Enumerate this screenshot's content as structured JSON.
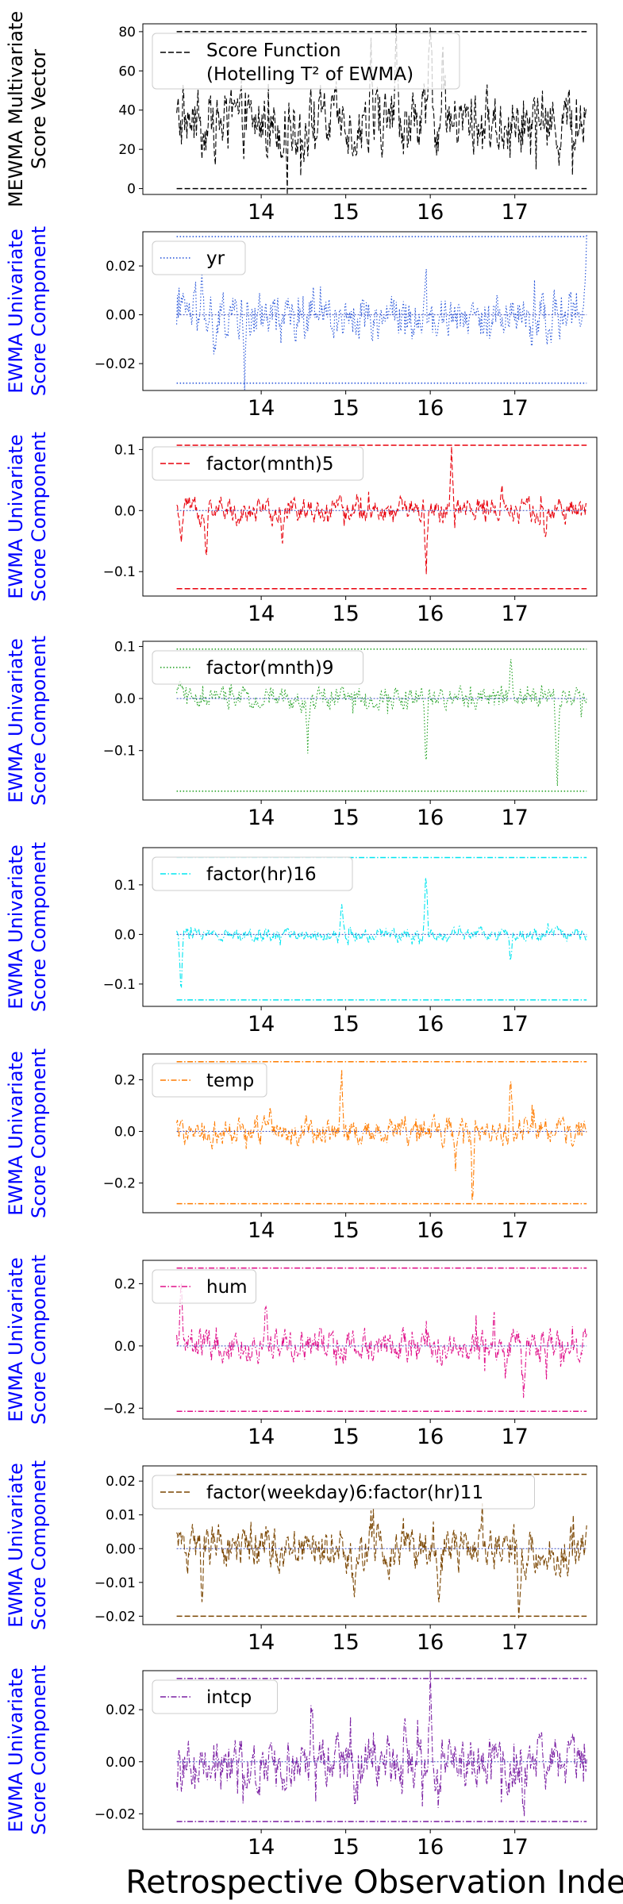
{
  "figure": {
    "xlabel": "Retrospective Observation Index",
    "xticks": [
      "14",
      "15",
      "16",
      "17"
    ],
    "sign_minus": "−"
  },
  "chart_data": [
    {
      "type": "line",
      "ylabel_lines": [
        "MEWMA Multivariate",
        "Score Vector"
      ],
      "ylabel_color": "#000000",
      "legend_lines": [
        "Score Function",
        "(Hotelling T² of EWMA)"
      ],
      "legend_position": "upper-left",
      "color": "#000000",
      "line_style": "dashed",
      "ylim": [
        -3,
        84
      ],
      "yticks": [
        0,
        20,
        40,
        60,
        80
      ],
      "center": null,
      "limits": {
        "upper": 80,
        "lower": 0
      },
      "series": {
        "base": 33,
        "amp": 13,
        "spikes": [
          [
            16.0,
            80
          ],
          [
            15.3,
            74
          ],
          [
            16.15,
            70
          ],
          [
            15.6,
            68
          ]
        ]
      }
    },
    {
      "type": "line",
      "ylabel_lines": [
        "EWMA Univariate",
        "Score Component"
      ],
      "ylabel_color": "#0000ff",
      "legend_lines": [
        "yr"
      ],
      "legend_position": "upper-left",
      "color": "#1f4fd8",
      "line_style": "dotted",
      "ylim": [
        -0.031,
        0.034
      ],
      "yticks": [
        -0.02,
        0.0,
        0.02
      ],
      "center": 0.0,
      "limits": {
        "upper": 0.032,
        "lower": -0.028
      },
      "series": {
        "base": 0.0,
        "amp": 0.007,
        "spikes": [
          [
            13.3,
            0.018
          ],
          [
            13.45,
            -0.02
          ],
          [
            13.8,
            -0.027
          ],
          [
            15.95,
            0.025
          ],
          [
            17.2,
            -0.018
          ],
          [
            17.85,
            0.032
          ]
        ]
      }
    },
    {
      "type": "line",
      "ylabel_lines": [
        "EWMA Univariate",
        "Score Component"
      ],
      "ylabel_color": "#0000ff",
      "legend_lines": [
        "factor(mnth)5"
      ],
      "legend_position": "upper-left",
      "color": "#e8000b",
      "line_style": "dashed",
      "ylim": [
        -0.14,
        0.12
      ],
      "yticks": [
        -0.1,
        0.0,
        0.1
      ],
      "center": 0.0,
      "limits": {
        "upper": 0.107,
        "lower": -0.128
      },
      "series": {
        "base": 0.0,
        "amp": 0.016,
        "spikes": [
          [
            13.35,
            -0.08
          ],
          [
            13.05,
            -0.07
          ],
          [
            14.25,
            -0.07
          ],
          [
            15.95,
            -0.12
          ],
          [
            16.25,
            0.11
          ],
          [
            17.35,
            -0.05
          ],
          [
            16.85,
            0.06
          ]
        ]
      }
    },
    {
      "type": "line",
      "ylabel_lines": [
        "EWMA Univariate",
        "Score Component"
      ],
      "ylabel_color": "#0000ff",
      "legend_lines": [
        "factor(mnth)9"
      ],
      "legend_position": "upper-left",
      "color": "#1a9e1a",
      "line_style": "dotted",
      "ylim": [
        -0.195,
        0.11
      ],
      "yticks": [
        -0.1,
        0.0,
        0.1
      ],
      "center": 0.0,
      "limits": {
        "upper": 0.095,
        "lower": -0.178
      },
      "series": {
        "base": 0.0,
        "amp": 0.016,
        "spikes": [
          [
            13.05,
            0.09
          ],
          [
            13.05,
            -0.05
          ],
          [
            14.55,
            -0.11
          ],
          [
            15.95,
            -0.13
          ],
          [
            17.5,
            -0.175
          ],
          [
            16.95,
            0.09
          ]
        ]
      }
    },
    {
      "type": "line",
      "ylabel_lines": [
        "EWMA Univariate",
        "Score Component"
      ],
      "ylabel_color": "#0000ff",
      "legend_lines": [
        "factor(hr)16"
      ],
      "legend_position": "upper-left",
      "color": "#00e5f0",
      "line_style": "dashdot",
      "ylim": [
        -0.145,
        0.175
      ],
      "yticks": [
        -0.1,
        0.0,
        0.1
      ],
      "center": 0.0,
      "limits": {
        "upper": 0.155,
        "lower": -0.132
      },
      "series": {
        "base": 0.0,
        "amp": 0.01,
        "spikes": [
          [
            13.05,
            -0.13
          ],
          [
            15.95,
            0.16
          ],
          [
            14.95,
            0.06
          ],
          [
            16.95,
            -0.07
          ]
        ]
      }
    },
    {
      "type": "line",
      "ylabel_lines": [
        "EWMA Univariate",
        "Score Component"
      ],
      "ylabel_color": "#0000ff",
      "legend_lines": [
        "temp"
      ],
      "legend_position": "upper-left",
      "color": "#ff7c00",
      "line_style": "dashdot",
      "ylim": [
        -0.315,
        0.3
      ],
      "yticks": [
        -0.2,
        0.0,
        0.2
      ],
      "center": 0.0,
      "limits": {
        "upper": 0.27,
        "lower": -0.28
      },
      "series": {
        "base": 0.0,
        "amp": 0.04,
        "spikes": [
          [
            14.95,
            0.26
          ],
          [
            16.5,
            -0.28
          ],
          [
            16.95,
            0.2
          ],
          [
            14.1,
            0.12
          ],
          [
            16.3,
            -0.2
          ]
        ]
      }
    },
    {
      "type": "line",
      "ylabel_lines": [
        "EWMA Univariate",
        "Score Component"
      ],
      "ylabel_color": "#0000ff",
      "legend_lines": [
        "hum"
      ],
      "legend_position": "upper-left",
      "color": "#e0118a",
      "line_style": "dashdot",
      "ylim": [
        -0.235,
        0.275
      ],
      "yticks": [
        -0.2,
        0.0,
        0.2
      ],
      "center": 0.0,
      "limits": {
        "upper": 0.25,
        "lower": -0.21
      },
      "series": {
        "base": 0.0,
        "amp": 0.04,
        "spikes": [
          [
            15.95,
            0.23
          ],
          [
            15.95,
            -0.17
          ],
          [
            14.05,
            0.12
          ],
          [
            17.1,
            -0.15
          ],
          [
            13.05,
            0.2
          ]
        ]
      }
    },
    {
      "type": "line",
      "ylabel_lines": [
        "EWMA Univariate",
        "Score Component"
      ],
      "ylabel_color": "#0000ff",
      "legend_lines": [
        "factor(weekday)6:factor(hr)11"
      ],
      "legend_position": "upper-left",
      "color": "#7a4500",
      "line_style": "dashed",
      "ylim": [
        -0.0225,
        0.0245
      ],
      "yticks": [
        -0.02,
        -0.01,
        0.0,
        0.01,
        0.02
      ],
      "center": 0.0,
      "limits": {
        "upper": 0.022,
        "lower": -0.02
      },
      "series": {
        "base": 0.0,
        "amp": 0.005,
        "spikes": [
          [
            13.3,
            -0.02
          ],
          [
            15.1,
            -0.018
          ],
          [
            16.1,
            -0.016
          ],
          [
            17.05,
            -0.02
          ],
          [
            15.3,
            0.015
          ],
          [
            16.6,
            0.012
          ]
        ]
      }
    },
    {
      "type": "line",
      "ylabel_lines": [
        "EWMA Univariate",
        "Score Component"
      ],
      "ylabel_color": "#0000ff",
      "legend_lines": [
        "intcp"
      ],
      "legend_position": "upper-left",
      "color": "#7a1fa2",
      "line_style": "dashdot",
      "ylim": [
        -0.026,
        0.035
      ],
      "yticks": [
        -0.02,
        0.0,
        0.02
      ],
      "center": 0.0,
      "limits": {
        "upper": 0.032,
        "lower": -0.023
      },
      "series": {
        "base": 0.0,
        "amp": 0.008,
        "spikes": [
          [
            16.0,
            0.032
          ],
          [
            15.1,
            -0.022
          ],
          [
            16.1,
            -0.022
          ],
          [
            17.1,
            -0.023
          ],
          [
            14.6,
            0.028
          ],
          [
            15.7,
            0.027
          ]
        ]
      }
    }
  ]
}
